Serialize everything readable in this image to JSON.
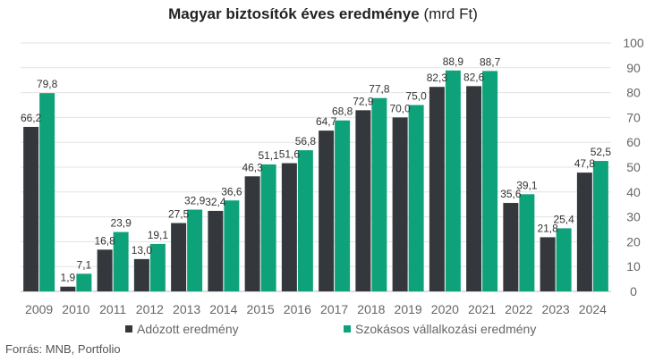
{
  "chart_data": {
    "type": "bar",
    "title_main": "Magyar biztosítók éves eredménye",
    "title_unit": "(mrd Ft)",
    "categories": [
      "2009",
      "2010",
      "2011",
      "2012",
      "2013",
      "2014",
      "2015",
      "2016",
      "2017",
      "2018",
      "2019",
      "2020",
      "2021",
      "2022",
      "2023",
      "2024"
    ],
    "series": [
      {
        "name": "Adózott eredmény",
        "color": "#34383d",
        "values": [
          66.2,
          1.9,
          16.8,
          13.0,
          27.5,
          32.4,
          46.3,
          51.6,
          64.7,
          72.9,
          70.0,
          82.3,
          82.6,
          35.6,
          21.8,
          47.8
        ],
        "labels": [
          "66,2",
          "1,9",
          "16,8",
          "13,0",
          "27,5",
          "32,4",
          "46,3",
          "51,6",
          "64,7",
          "72,9",
          "70,0",
          "82,3",
          "82,6",
          "35,6",
          "21,8",
          "47,8"
        ]
      },
      {
        "name": "Szokásos vállalkozási eredmény",
        "color": "#0ea27a",
        "values": [
          79.8,
          7.1,
          23.9,
          19.1,
          32.9,
          36.6,
          51.1,
          56.8,
          68.8,
          77.8,
          75.0,
          88.9,
          88.7,
          39.1,
          25.4,
          52.5
        ],
        "labels": [
          "79,8",
          "7,1",
          "23,9",
          "19,1",
          "32,9",
          "36,6",
          "51,1",
          "56,8",
          "68,8",
          "77,8",
          "75,0",
          "88,9",
          "88,7",
          "39,1",
          "25,4",
          "52,5"
        ]
      }
    ],
    "ylim": [
      0,
      100
    ],
    "yticks": [
      "0",
      "10",
      "20",
      "30",
      "40",
      "50",
      "60",
      "70",
      "80",
      "90",
      "100"
    ],
    "y_axis_side": "right",
    "grid": true,
    "legend_placement": "bottom"
  },
  "source": "Forrás: MNB, Portfolio"
}
